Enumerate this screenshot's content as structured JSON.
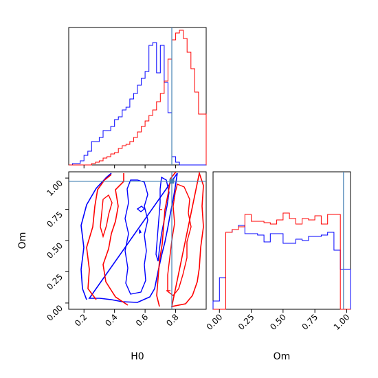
{
  "chart_data": {
    "type": "corner",
    "truth": {
      "H0": 0.775,
      "Om": 0.975
    },
    "colors": {
      "series_a": "#0000ff",
      "series_b": "#ff0000",
      "truth": "#4682b4"
    },
    "panels": [
      {
        "id": "hist_H0",
        "type": "step-histogram",
        "xlim": [
          0.1,
          1.0
        ],
        "ylim": [
          0,
          1.0
        ],
        "xticks": [
          0.2,
          0.4,
          0.6,
          0.8
        ],
        "bins": [
          0.1,
          0.125,
          0.15,
          0.175,
          0.2,
          0.225,
          0.25,
          0.275,
          0.3,
          0.325,
          0.35,
          0.375,
          0.4,
          0.425,
          0.45,
          0.475,
          0.5,
          0.525,
          0.55,
          0.575,
          0.6,
          0.625,
          0.65,
          0.675,
          0.7,
          0.725,
          0.75,
          0.775,
          0.8,
          0.825,
          0.85,
          0.875,
          0.9,
          0.925,
          0.95,
          0.975,
          1.0
        ],
        "series": [
          {
            "color": "blue",
            "values": [
              0.0,
              0.01,
              0.01,
              0.03,
              0.07,
              0.1,
              0.17,
              0.17,
              0.2,
              0.25,
              0.25,
              0.28,
              0.33,
              0.35,
              0.4,
              0.42,
              0.48,
              0.52,
              0.58,
              0.63,
              0.68,
              0.87,
              0.89,
              0.67,
              0.87,
              0.6,
              0.38,
              0.06,
              0.02,
              0.0,
              0.0,
              0.0,
              0.0,
              0.0,
              0.0,
              0.0
            ]
          },
          {
            "color": "red",
            "values": [
              0.0,
              0.0,
              0.0,
              0.0,
              0.0,
              0.0,
              0.01,
              0.02,
              0.03,
              0.05,
              0.06,
              0.08,
              0.09,
              0.12,
              0.14,
              0.15,
              0.17,
              0.2,
              0.24,
              0.28,
              0.32,
              0.36,
              0.4,
              0.46,
              0.52,
              0.61,
              0.77,
              0.91,
              0.96,
              0.98,
              0.92,
              0.82,
              0.7,
              0.53,
              0.37,
              0.37
            ]
          }
        ]
      },
      {
        "id": "contour_H0_Om",
        "type": "contour",
        "xlim": [
          0.1,
          1.0
        ],
        "ylim": [
          -0.05,
          1.05
        ],
        "xticks": [
          0.2,
          0.4,
          0.6,
          0.8
        ],
        "yticks": [
          0.0,
          0.25,
          0.5,
          0.75,
          1.0
        ]
      },
      {
        "id": "hist_Om",
        "type": "step-histogram",
        "xlim": [
          -0.05,
          1.03
        ],
        "ylim": [
          0,
          1.0
        ],
        "xticks": [
          0.0,
          0.25,
          0.5,
          0.75,
          1.0
        ],
        "bins": [
          -0.05,
          0.0,
          0.05,
          0.1,
          0.15,
          0.2,
          0.25,
          0.3,
          0.35,
          0.4,
          0.45,
          0.5,
          0.55,
          0.6,
          0.65,
          0.7,
          0.75,
          0.8,
          0.85,
          0.9,
          0.95,
          1.0,
          1.03
        ],
        "series": [
          {
            "color": "blue",
            "values": [
              0.06,
              0.23,
              0.56,
              0.58,
              0.61,
              0.55,
              0.55,
              0.54,
              0.49,
              0.55,
              0.55,
              0.48,
              0.48,
              0.51,
              0.5,
              0.53,
              0.53,
              0.54,
              0.56,
              0.43,
              0.29,
              0.29
            ]
          },
          {
            "color": "red",
            "values": [
              0.0,
              0.0,
              0.56,
              0.58,
              0.6,
              0.69,
              0.64,
              0.64,
              0.63,
              0.62,
              0.65,
              0.7,
              0.66,
              0.62,
              0.66,
              0.65,
              0.68,
              0.62,
              0.69,
              0.69,
              0.0,
              0.0
            ]
          }
        ]
      }
    ],
    "axes": {
      "xlabels": [
        "H0",
        "Om"
      ],
      "ylabels": [
        "",
        "Om"
      ]
    },
    "H0_tick_labels": [
      "0.2",
      "0.4",
      "0.6",
      "0.8"
    ],
    "Om_tick_labels": [
      "0.00",
      "0.25",
      "0.50",
      "0.75",
      "1.00"
    ]
  }
}
